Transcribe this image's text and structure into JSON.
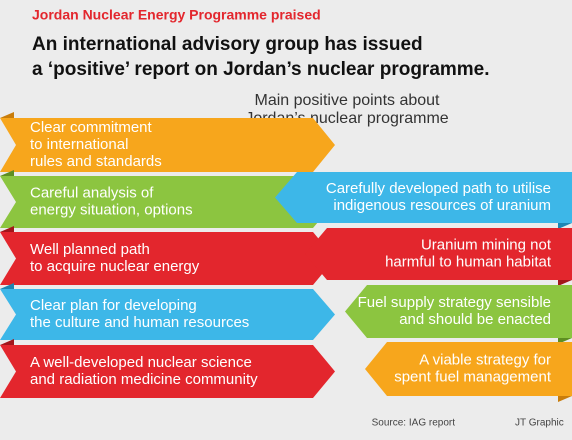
{
  "header": {
    "title": "Jordan Nuclear Energy Programme praised",
    "subtitle": [
      "An international advisory group has issued",
      "a ‘positive’ report on Jordan’s nuclear programme."
    ]
  },
  "heading": [
    "Main positive points about",
    "Jordan’s nuclear programme"
  ],
  "left_points": [
    {
      "lines": [
        "Clear commitment",
        "to international",
        "rules and standards"
      ]
    },
    {
      "lines": [
        "Careful analysis of",
        "energy situation, options"
      ]
    },
    {
      "lines": [
        "Well planned path",
        "to acquire nuclear energy"
      ]
    },
    {
      "lines": [
        "Clear plan for developing",
        "the culture and human resources"
      ]
    },
    {
      "lines": [
        "A well-developed nuclear science",
        "and radiation medicine community"
      ]
    }
  ],
  "right_points": [
    {
      "lines": [
        "Carefully developed path to utilise",
        "indigenous resources of uranium"
      ]
    },
    {
      "lines": [
        "Uranium mining not",
        "harmful to human habitat"
      ]
    },
    {
      "lines": [
        "Fuel supply strategy sensible",
        "and should be enacted"
      ]
    },
    {
      "lines": [
        "A viable strategy for",
        "spent fuel management"
      ]
    }
  ],
  "footer": {
    "source": "Source: IAG report",
    "credit": "JT Graphic"
  }
}
